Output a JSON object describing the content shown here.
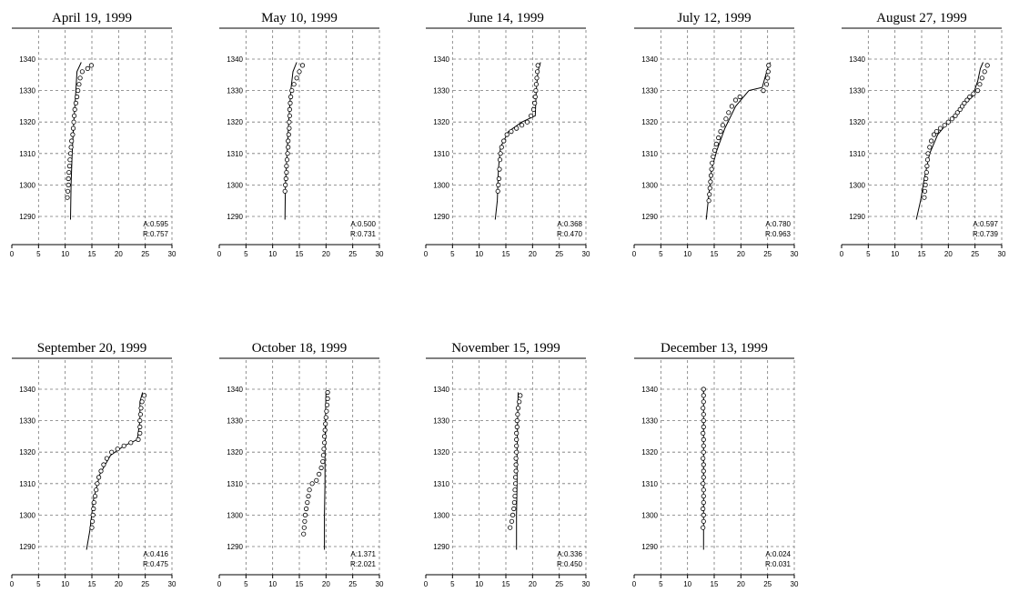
{
  "chart_data": [
    {
      "type": "scatter",
      "title": "April 19, 1999",
      "xlim": [
        0,
        30
      ],
      "ylim": [
        1290,
        1340
      ],
      "x_ticks": [
        "0",
        "5",
        "10",
        "15",
        "20",
        "25",
        "30"
      ],
      "y_ticks": [
        "1290",
        "1300",
        "1310",
        "1320",
        "1330",
        "1340"
      ],
      "stats": {
        "A": "A:0.595",
        "R": "R:0.757"
      },
      "model": [
        [
          11.0,
          1289
        ],
        [
          11.1,
          1300
        ],
        [
          11.3,
          1310
        ],
        [
          11.6,
          1320
        ],
        [
          12.0,
          1330
        ],
        [
          12.2,
          1336
        ],
        [
          13.0,
          1339
        ]
      ],
      "observed": [
        [
          10.4,
          1296
        ],
        [
          10.5,
          1298
        ],
        [
          10.6,
          1300
        ],
        [
          10.6,
          1302
        ],
        [
          10.7,
          1304
        ],
        [
          10.8,
          1306
        ],
        [
          10.9,
          1308
        ],
        [
          11.0,
          1310
        ],
        [
          11.1,
          1312
        ],
        [
          11.2,
          1314
        ],
        [
          11.4,
          1316
        ],
        [
          11.5,
          1318
        ],
        [
          11.6,
          1320
        ],
        [
          11.7,
          1322
        ],
        [
          11.8,
          1324
        ],
        [
          12.0,
          1326
        ],
        [
          12.2,
          1328
        ],
        [
          12.4,
          1330
        ],
        [
          12.6,
          1332
        ],
        [
          12.8,
          1334
        ],
        [
          13.2,
          1336
        ],
        [
          14.2,
          1337
        ],
        [
          14.9,
          1338
        ]
      ]
    },
    {
      "type": "scatter",
      "title": "May 10, 1999",
      "xlim": [
        0,
        30
      ],
      "ylim": [
        1290,
        1340
      ],
      "x_ticks": [
        "0",
        "5",
        "10",
        "15",
        "20",
        "25",
        "30"
      ],
      "y_ticks": [
        "1290",
        "1300",
        "1310",
        "1320",
        "1330",
        "1340"
      ],
      "stats": {
        "A": "A:0.500",
        "R": "R:0.731"
      },
      "model": [
        [
          12.3,
          1289
        ],
        [
          12.4,
          1300
        ],
        [
          12.7,
          1310
        ],
        [
          13.0,
          1320
        ],
        [
          13.4,
          1330
        ],
        [
          13.8,
          1336
        ],
        [
          14.5,
          1339
        ]
      ],
      "observed": [
        [
          12.3,
          1298
        ],
        [
          12.4,
          1300
        ],
        [
          12.5,
          1302
        ],
        [
          12.6,
          1304
        ],
        [
          12.6,
          1306
        ],
        [
          12.7,
          1308
        ],
        [
          12.8,
          1310
        ],
        [
          12.9,
          1312
        ],
        [
          12.9,
          1314
        ],
        [
          13.0,
          1316
        ],
        [
          13.1,
          1318
        ],
        [
          13.1,
          1320
        ],
        [
          13.2,
          1322
        ],
        [
          13.2,
          1324
        ],
        [
          13.3,
          1326
        ],
        [
          13.4,
          1328
        ],
        [
          13.6,
          1330
        ],
        [
          14.0,
          1332
        ],
        [
          14.5,
          1334
        ],
        [
          15.0,
          1336
        ],
        [
          15.6,
          1338
        ]
      ]
    },
    {
      "type": "scatter",
      "title": "June 14, 1999",
      "xlim": [
        0,
        30
      ],
      "ylim": [
        1290,
        1340
      ],
      "x_ticks": [
        "0",
        "5",
        "10",
        "15",
        "20",
        "25",
        "30"
      ],
      "y_ticks": [
        "1290",
        "1300",
        "1310",
        "1320",
        "1330",
        "1340"
      ],
      "stats": {
        "A": "A:0.368",
        "R": "R:0.470"
      },
      "model": [
        [
          13.0,
          1289
        ],
        [
          13.4,
          1295
        ],
        [
          13.6,
          1305
        ],
        [
          14.0,
          1312
        ],
        [
          15.5,
          1317
        ],
        [
          18.0,
          1320
        ],
        [
          20.5,
          1322
        ],
        [
          20.7,
          1330
        ],
        [
          21.0,
          1336
        ],
        [
          21.5,
          1339
        ]
      ],
      "observed": [
        [
          13.5,
          1298
        ],
        [
          13.6,
          1300
        ],
        [
          13.7,
          1302
        ],
        [
          13.8,
          1305
        ],
        [
          13.9,
          1308
        ],
        [
          14.0,
          1310
        ],
        [
          14.2,
          1312
        ],
        [
          14.6,
          1314
        ],
        [
          15.2,
          1316
        ],
        [
          16.0,
          1317
        ],
        [
          17.0,
          1318
        ],
        [
          18.0,
          1319
        ],
        [
          19.0,
          1320
        ],
        [
          19.7,
          1322
        ],
        [
          20.2,
          1324
        ],
        [
          20.4,
          1326
        ],
        [
          20.5,
          1328
        ],
        [
          20.6,
          1330
        ],
        [
          20.7,
          1332
        ],
        [
          20.8,
          1334
        ],
        [
          20.9,
          1336
        ],
        [
          21.0,
          1338
        ]
      ]
    },
    {
      "type": "scatter",
      "title": "July 12, 1999",
      "xlim": [
        0,
        30
      ],
      "ylim": [
        1290,
        1340
      ],
      "x_ticks": [
        "0",
        "5",
        "10",
        "15",
        "20",
        "25",
        "30"
      ],
      "y_ticks": [
        "1290",
        "1300",
        "1310",
        "1320",
        "1330",
        "1340"
      ],
      "stats": {
        "A": "A:0.780",
        "R": "R:0.963"
      },
      "model": [
        [
          13.5,
          1289
        ],
        [
          14.0,
          1297
        ],
        [
          14.5,
          1305
        ],
        [
          15.5,
          1311
        ],
        [
          17.0,
          1318
        ],
        [
          19.0,
          1325
        ],
        [
          21.5,
          1330
        ],
        [
          24.0,
          1331
        ],
        [
          24.5,
          1334
        ],
        [
          25.0,
          1337
        ],
        [
          25.5,
          1339
        ]
      ],
      "observed": [
        [
          14.0,
          1295
        ],
        [
          14.1,
          1297
        ],
        [
          14.2,
          1299
        ],
        [
          14.3,
          1301
        ],
        [
          14.4,
          1303
        ],
        [
          14.5,
          1305
        ],
        [
          14.6,
          1307
        ],
        [
          14.8,
          1309
        ],
        [
          15.1,
          1311
        ],
        [
          15.4,
          1313
        ],
        [
          15.8,
          1315
        ],
        [
          16.2,
          1317
        ],
        [
          16.6,
          1319
        ],
        [
          17.2,
          1321
        ],
        [
          17.7,
          1323
        ],
        [
          18.3,
          1325
        ],
        [
          19.0,
          1327
        ],
        [
          19.8,
          1328
        ],
        [
          24.2,
          1330
        ],
        [
          24.8,
          1332
        ],
        [
          25.0,
          1334
        ],
        [
          25.1,
          1336
        ],
        [
          25.2,
          1338
        ]
      ]
    },
    {
      "type": "scatter",
      "title": "August 27, 1999",
      "xlim": [
        0,
        30
      ],
      "ylim": [
        1290,
        1340
      ],
      "x_ticks": [
        "0",
        "5",
        "10",
        "15",
        "20",
        "25",
        "30"
      ],
      "y_ticks": [
        "1290",
        "1300",
        "1310",
        "1320",
        "1330",
        "1340"
      ],
      "stats": {
        "A": "A:0.597",
        "R": "R:0.739"
      },
      "model": [
        [
          14.0,
          1289
        ],
        [
          14.8,
          1295
        ],
        [
          15.5,
          1302
        ],
        [
          16.5,
          1310
        ],
        [
          18.0,
          1316
        ],
        [
          20.0,
          1320
        ],
        [
          22.5,
          1325
        ],
        [
          24.5,
          1328
        ],
        [
          25.5,
          1333
        ],
        [
          26.0,
          1337
        ],
        [
          26.5,
          1339
        ]
      ],
      "observed": [
        [
          15.5,
          1296
        ],
        [
          15.6,
          1298
        ],
        [
          15.7,
          1300
        ],
        [
          15.8,
          1302
        ],
        [
          15.9,
          1304
        ],
        [
          16.0,
          1306
        ],
        [
          16.1,
          1308
        ],
        [
          16.2,
          1310
        ],
        [
          16.5,
          1312
        ],
        [
          16.8,
          1314
        ],
        [
          17.3,
          1316
        ],
        [
          17.8,
          1317
        ],
        [
          18.5,
          1318
        ],
        [
          19.3,
          1319
        ],
        [
          20.0,
          1320
        ],
        [
          20.7,
          1321
        ],
        [
          21.3,
          1322
        ],
        [
          21.7,
          1323
        ],
        [
          22.2,
          1324
        ],
        [
          22.6,
          1325
        ],
        [
          23.0,
          1326
        ],
        [
          23.5,
          1327
        ],
        [
          24.0,
          1328
        ],
        [
          24.7,
          1329
        ],
        [
          25.5,
          1330
        ],
        [
          25.9,
          1332
        ],
        [
          26.3,
          1334
        ],
        [
          26.8,
          1336
        ],
        [
          27.3,
          1338
        ]
      ]
    },
    {
      "type": "scatter",
      "title": "September 20, 1999",
      "xlim": [
        0,
        30
      ],
      "ylim": [
        1290,
        1340
      ],
      "x_ticks": [
        "0",
        "5",
        "10",
        "15",
        "20",
        "25",
        "30"
      ],
      "y_ticks": [
        "1290",
        "1300",
        "1310",
        "1320",
        "1330",
        "1340"
      ],
      "stats": {
        "A": "A:0.416",
        "R": "R:0.475"
      },
      "model": [
        [
          14.0,
          1289
        ],
        [
          14.6,
          1295
        ],
        [
          15.3,
          1305
        ],
        [
          16.5,
          1313
        ],
        [
          18.5,
          1319
        ],
        [
          21.0,
          1322
        ],
        [
          23.5,
          1324
        ],
        [
          24.0,
          1330
        ],
        [
          24.0,
          1336
        ],
        [
          24.5,
          1339
        ]
      ],
      "observed": [
        [
          15.0,
          1296
        ],
        [
          15.1,
          1298
        ],
        [
          15.2,
          1300
        ],
        [
          15.3,
          1302
        ],
        [
          15.4,
          1304
        ],
        [
          15.6,
          1306
        ],
        [
          15.8,
          1308
        ],
        [
          16.0,
          1310
        ],
        [
          16.3,
          1312
        ],
        [
          16.7,
          1314
        ],
        [
          17.2,
          1316
        ],
        [
          17.8,
          1318
        ],
        [
          18.7,
          1320
        ],
        [
          19.8,
          1321
        ],
        [
          21.0,
          1322
        ],
        [
          22.3,
          1323
        ],
        [
          23.7,
          1324
        ],
        [
          24.0,
          1326
        ],
        [
          24.0,
          1328
        ],
        [
          24.0,
          1330
        ],
        [
          24.1,
          1332
        ],
        [
          24.2,
          1334
        ],
        [
          24.4,
          1336
        ],
        [
          24.8,
          1338
        ]
      ]
    },
    {
      "type": "scatter",
      "title": "October 18, 1999",
      "xlim": [
        0,
        30
      ],
      "ylim": [
        1290,
        1340
      ],
      "x_ticks": [
        "0",
        "5",
        "10",
        "15",
        "20",
        "25",
        "30"
      ],
      "y_ticks": [
        "1290",
        "1300",
        "1310",
        "1320",
        "1330",
        "1340"
      ],
      "stats": {
        "A": "A:1.371",
        "R": "R:2.021"
      },
      "model": [
        [
          19.7,
          1289
        ],
        [
          19.7,
          1300
        ],
        [
          19.8,
          1310
        ],
        [
          19.8,
          1320
        ],
        [
          19.9,
          1330
        ],
        [
          20.0,
          1339
        ]
      ],
      "observed": [
        [
          15.8,
          1294
        ],
        [
          15.9,
          1296
        ],
        [
          16.0,
          1298
        ],
        [
          16.1,
          1300
        ],
        [
          16.3,
          1302
        ],
        [
          16.5,
          1304
        ],
        [
          16.7,
          1306
        ],
        [
          16.9,
          1308
        ],
        [
          17.4,
          1310
        ],
        [
          18.2,
          1311
        ],
        [
          18.7,
          1313
        ],
        [
          19.1,
          1315
        ],
        [
          19.4,
          1317
        ],
        [
          19.5,
          1319
        ],
        [
          19.6,
          1321
        ],
        [
          19.7,
          1323
        ],
        [
          19.7,
          1325
        ],
        [
          19.8,
          1327
        ],
        [
          19.9,
          1329
        ],
        [
          20.0,
          1331
        ],
        [
          20.1,
          1333
        ],
        [
          20.2,
          1335
        ],
        [
          20.3,
          1337
        ],
        [
          20.3,
          1339
        ]
      ]
    },
    {
      "type": "scatter",
      "title": "November 15, 1999",
      "xlim": [
        0,
        30
      ],
      "ylim": [
        1290,
        1340
      ],
      "x_ticks": [
        "0",
        "5",
        "10",
        "15",
        "20",
        "25",
        "30"
      ],
      "y_ticks": [
        "1290",
        "1300",
        "1310",
        "1320",
        "1330",
        "1340"
      ],
      "stats": {
        "A": "A:0.336",
        "R": "R:0.450"
      },
      "model": [
        [
          17.0,
          1289
        ],
        [
          17.0,
          1300
        ],
        [
          17.1,
          1310
        ],
        [
          17.1,
          1320
        ],
        [
          17.2,
          1330
        ],
        [
          17.3,
          1339
        ]
      ],
      "observed": [
        [
          15.8,
          1296
        ],
        [
          16.1,
          1298
        ],
        [
          16.3,
          1300
        ],
        [
          16.5,
          1302
        ],
        [
          16.6,
          1304
        ],
        [
          16.7,
          1306
        ],
        [
          16.7,
          1308
        ],
        [
          16.8,
          1310
        ],
        [
          16.8,
          1312
        ],
        [
          16.9,
          1314
        ],
        [
          16.9,
          1316
        ],
        [
          16.9,
          1318
        ],
        [
          17.0,
          1320
        ],
        [
          17.0,
          1322
        ],
        [
          17.0,
          1324
        ],
        [
          17.0,
          1326
        ],
        [
          17.1,
          1328
        ],
        [
          17.1,
          1330
        ],
        [
          17.2,
          1332
        ],
        [
          17.3,
          1334
        ],
        [
          17.5,
          1336
        ],
        [
          17.7,
          1338
        ]
      ]
    },
    {
      "type": "scatter",
      "title": "December 13, 1999",
      "xlim": [
        0,
        30
      ],
      "ylim": [
        1290,
        1340
      ],
      "x_ticks": [
        "0",
        "5",
        "10",
        "15",
        "20",
        "25",
        "30"
      ],
      "y_ticks": [
        "1290",
        "1300",
        "1310",
        "1320",
        "1330",
        "1340"
      ],
      "stats": {
        "A": "A:0.024",
        "R": "R:0.031"
      },
      "model": [
        [
          13.0,
          1289
        ],
        [
          13.0,
          1300
        ],
        [
          13.0,
          1310
        ],
        [
          13.0,
          1320
        ],
        [
          13.0,
          1330
        ],
        [
          13.0,
          1340
        ]
      ],
      "observed": [
        [
          12.9,
          1296
        ],
        [
          13.0,
          1298
        ],
        [
          13.0,
          1300
        ],
        [
          12.9,
          1302
        ],
        [
          13.0,
          1304
        ],
        [
          13.0,
          1306
        ],
        [
          13.0,
          1308
        ],
        [
          12.9,
          1310
        ],
        [
          13.0,
          1312
        ],
        [
          13.0,
          1314
        ],
        [
          13.0,
          1316
        ],
        [
          12.9,
          1318
        ],
        [
          13.0,
          1320
        ],
        [
          13.0,
          1322
        ],
        [
          13.0,
          1324
        ],
        [
          12.9,
          1326
        ],
        [
          13.0,
          1328
        ],
        [
          13.0,
          1330
        ],
        [
          13.0,
          1332
        ],
        [
          12.9,
          1334
        ],
        [
          13.0,
          1336
        ],
        [
          13.0,
          1338
        ],
        [
          13.0,
          1340
        ]
      ]
    }
  ]
}
